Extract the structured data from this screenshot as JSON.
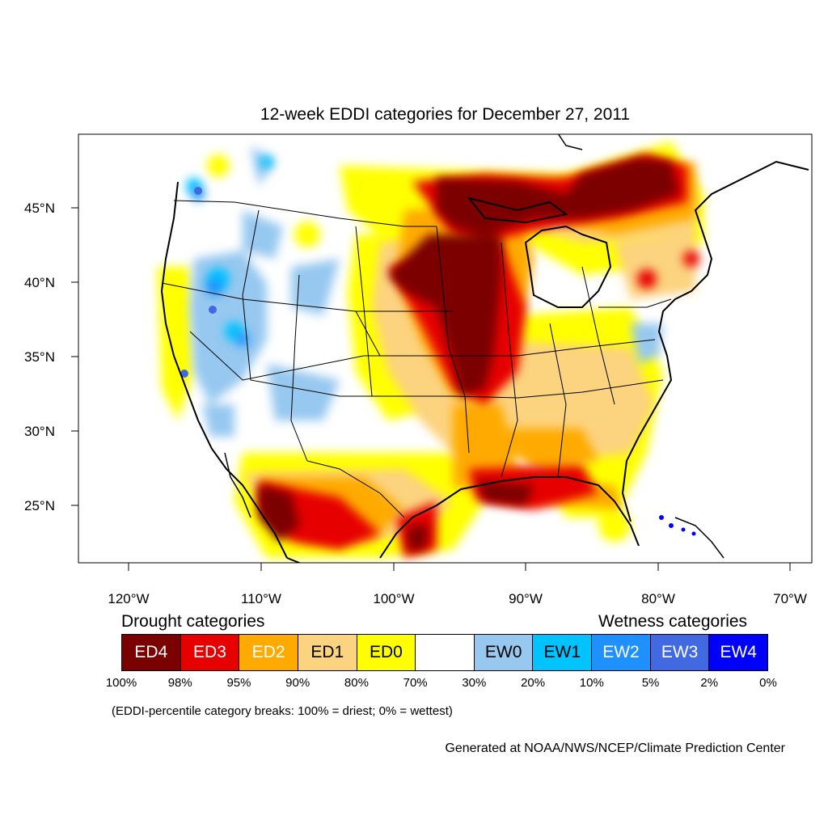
{
  "title": "12-week EDDI categories for December 27, 2011",
  "axes": {
    "x_ticks": [
      "120°W",
      "110°W",
      "100°W",
      "90°W",
      "80°W",
      "70°W"
    ],
    "y_ticks": [
      "45°N",
      "40°N",
      "35°N",
      "30°N",
      "25°N"
    ]
  },
  "legend": {
    "drought_heading": "Drought categories",
    "wetness_heading": "Wetness categories",
    "categories": [
      {
        "label": "ED4",
        "color": "#7b0000",
        "text_color": "#ffffff"
      },
      {
        "label": "ED3",
        "color": "#e60000",
        "text_color": "#ffffff"
      },
      {
        "label": "ED2",
        "color": "#ffaa00",
        "text_color": "#ffffff"
      },
      {
        "label": "ED1",
        "color": "#fcd37f",
        "text_color": "#000000"
      },
      {
        "label": "ED0",
        "color": "#ffff00",
        "text_color": "#000000"
      },
      {
        "label": "",
        "color": "#ffffff",
        "text_color": "#000000"
      },
      {
        "label": "EW0",
        "color": "#96c8f0",
        "text_color": "#000000"
      },
      {
        "label": "EW1",
        "color": "#00c3ff",
        "text_color": "#000000"
      },
      {
        "label": "EW2",
        "color": "#1e90ff",
        "text_color": "#ffffff"
      },
      {
        "label": "EW3",
        "color": "#4169e1",
        "text_color": "#ffffff"
      },
      {
        "label": "EW4",
        "color": "#0000ff",
        "text_color": "#ffffff"
      }
    ],
    "breaks": [
      "100%",
      "98%",
      "95%",
      "90%",
      "80%",
      "70%",
      "30%",
      "20%",
      "10%",
      "5%",
      "2%",
      "0%"
    ]
  },
  "note": "(EDDI-percentile category breaks: 100% = driest; 0% = wettest)",
  "credit": "Generated at NOAA/NWS/NCEP/Climate Prediction Center"
}
